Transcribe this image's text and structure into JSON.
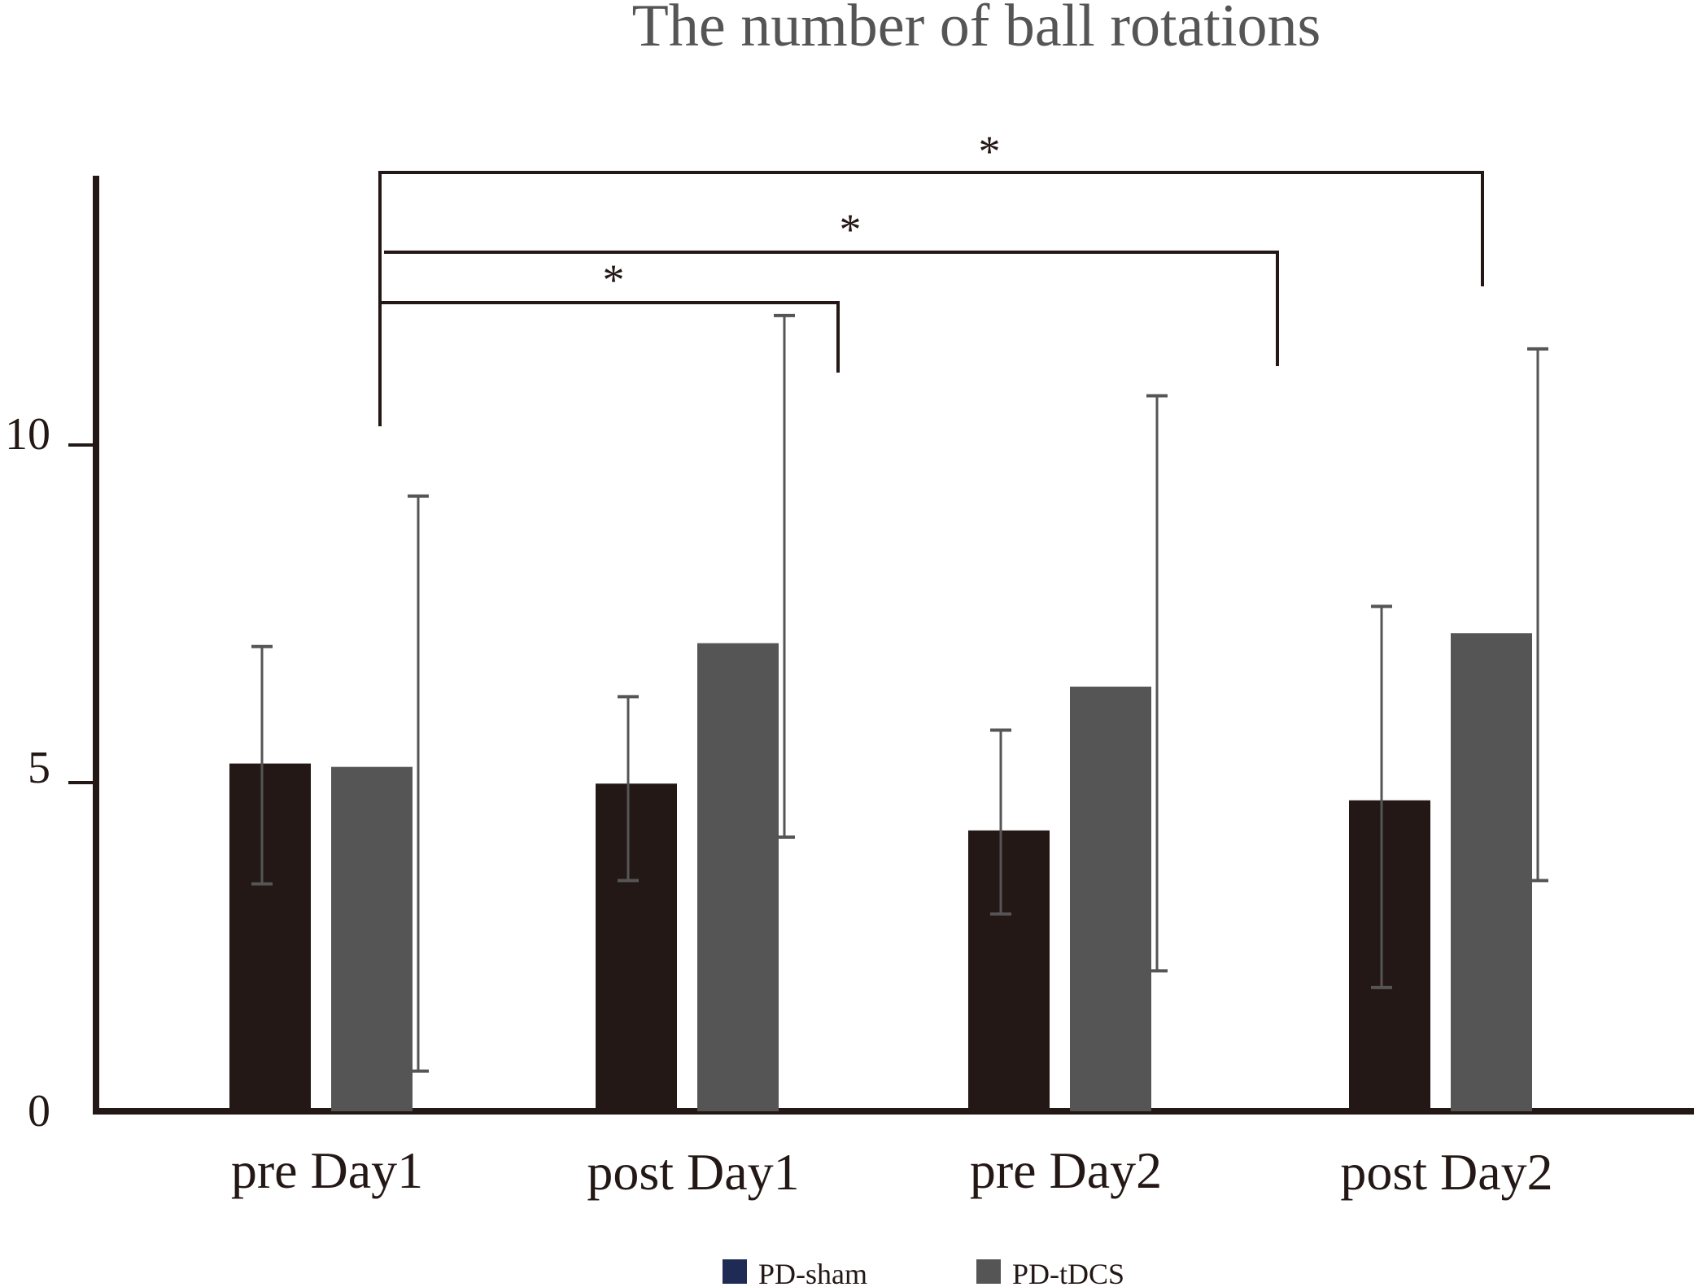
{
  "chart_data": {
    "type": "bar",
    "title": "The number of ball rotations",
    "xlabel": "",
    "ylabel": "",
    "ylim": [
      0,
      13.5
    ],
    "yticks": [
      0,
      5,
      10
    ],
    "ytick_labels": [
      "0",
      "5",
      "10"
    ],
    "categories": [
      "pre Day1",
      "post Day1",
      "pre Day2",
      "post Day2"
    ],
    "series": [
      {
        "name": "PD-sham",
        "legend_color": "#1f2a55",
        "bar_color": "#231815",
        "values": [
          5.2,
          4.9,
          4.2,
          4.65
        ],
        "error_upper": [
          6.95,
          6.2,
          5.7,
          7.55
        ],
        "error_lower": [
          3.4,
          3.45,
          2.95,
          1.85
        ]
      },
      {
        "name": "PD-tDCS",
        "legend_color": "#555555",
        "bar_color": "#555555",
        "values": [
          5.15,
          7.0,
          6.35,
          7.15
        ],
        "error_upper": [
          9.2,
          11.9,
          10.7,
          11.4
        ],
        "error_lower": [
          0.6,
          4.1,
          2.1,
          3.45
        ]
      }
    ],
    "significance": [
      {
        "from": "pre Day1",
        "to": "post Day1",
        "label": "*"
      },
      {
        "from": "pre Day1",
        "to": "pre Day2",
        "label": "*"
      },
      {
        "from": "pre Day1",
        "to": "post Day2",
        "label": "*"
      }
    ],
    "legend_position": "bottom-center",
    "grid": false
  }
}
